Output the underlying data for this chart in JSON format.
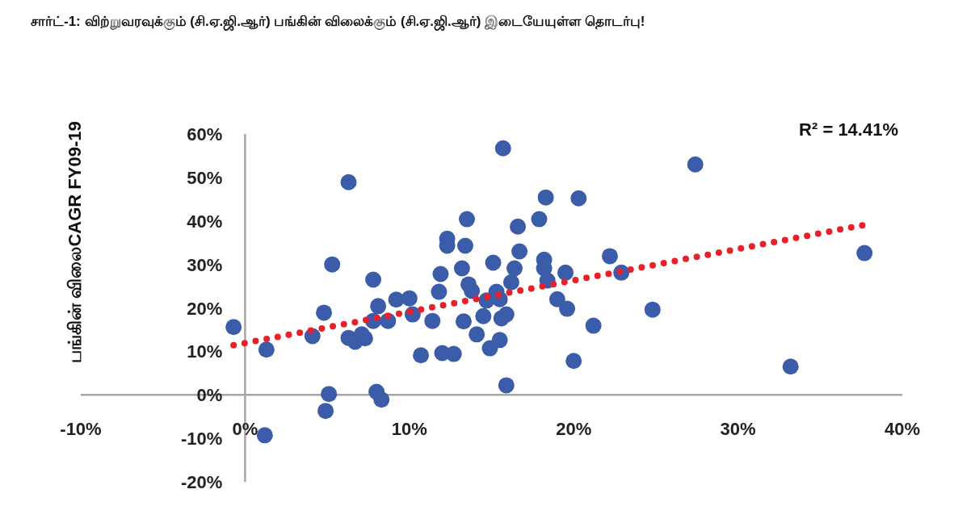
{
  "chart_data": {
    "type": "scatter",
    "title": "சார்ட்-1: விற்றுவரவுக்கும் (சி.ஏ.ஜி.ஆர்) பங்கின் விலைக்கும் (சி.ஏ.ஜி.ஆர்) இடையேயுள்ள தொடர்பு!",
    "ylabel": "பங்கின் விலைCAGR FY09-19",
    "annotations": [
      "R² = 14.41%"
    ],
    "xlim": [
      -10,
      40
    ],
    "ylim": [
      -20,
      60
    ],
    "xticks": [
      {
        "value": -10,
        "label": "-10%"
      },
      {
        "value": 0,
        "label": "0%"
      },
      {
        "value": 10,
        "label": "10%"
      },
      {
        "value": 20,
        "label": "20%"
      },
      {
        "value": 30,
        "label": "30%"
      },
      {
        "value": 40,
        "label": "40%"
      }
    ],
    "yticks": [
      {
        "value": -20,
        "label": "-20%"
      },
      {
        "value": -10,
        "label": "-10%"
      },
      {
        "value": 0,
        "label": "0%"
      },
      {
        "value": 10,
        "label": "10%"
      },
      {
        "value": 20,
        "label": "20%"
      },
      {
        "value": 30,
        "label": "30%"
      },
      {
        "value": 40,
        "label": "40%"
      },
      {
        "value": 50,
        "label": "50%"
      },
      {
        "value": 60,
        "label": "60%"
      }
    ],
    "grid": false,
    "series": [
      {
        "marker": "circle",
        "color": "#3b5ca8",
        "x": [
          -0.7,
          1.3,
          4.1,
          4.8,
          5.3,
          6.3,
          4.9,
          5.1,
          6.3,
          6.7,
          7.1,
          7.3,
          7.8,
          7.8,
          8.1,
          8.0,
          8.3,
          8.7,
          9.2,
          10.0,
          10.2,
          11.4,
          10.7,
          11.8,
          11.9,
          12.0,
          12.3,
          12.3,
          12.7,
          13.2,
          13.3,
          13.5,
          13.4,
          13.6,
          13.8,
          14.1,
          14.5,
          14.7,
          14.9,
          15.1,
          15.3,
          15.5,
          15.7,
          15.5,
          15.6,
          15.9,
          15.9,
          16.2,
          16.4,
          16.6,
          16.7,
          17.9,
          18.2,
          18.2,
          18.3,
          18.4,
          19.0,
          19.5,
          19.6,
          20.0,
          20.3,
          21.2,
          22.2,
          22.9,
          24.8,
          27.4,
          33.2,
          37.7,
          1.2
        ],
        "values": [
          15.6,
          10.4,
          13.5,
          18.9,
          30,
          48.9,
          -3.7,
          0.2,
          13.1,
          12.2,
          13.9,
          13,
          17,
          26.5,
          20.4,
          0.7,
          -1.1,
          17,
          21.9,
          22.2,
          18.5,
          17,
          9.1,
          23.7,
          27.8,
          9.6,
          35.9,
          34.3,
          9.4,
          29.1,
          16.9,
          40.4,
          34.3,
          25.4,
          23.9,
          13.9,
          18.1,
          21.7,
          10.7,
          30.4,
          23.7,
          12.6,
          56.7,
          22,
          17.6,
          18.5,
          2.2,
          25.9,
          29.1,
          38.7,
          33,
          40.4,
          31.1,
          29.1,
          45.4,
          26.3,
          22,
          28.1,
          19.8,
          7.8,
          45.2,
          15.9,
          31.9,
          28.1,
          19.6,
          53,
          6.5,
          32.6,
          -9.3
        ]
      },
      {
        "type": "line",
        "marker": "none",
        "color": "#e8202a",
        "line_style": "dotted",
        "x": [
          -0.7,
          37.7
        ],
        "values": [
          11.4,
          39.1
        ]
      }
    ]
  }
}
